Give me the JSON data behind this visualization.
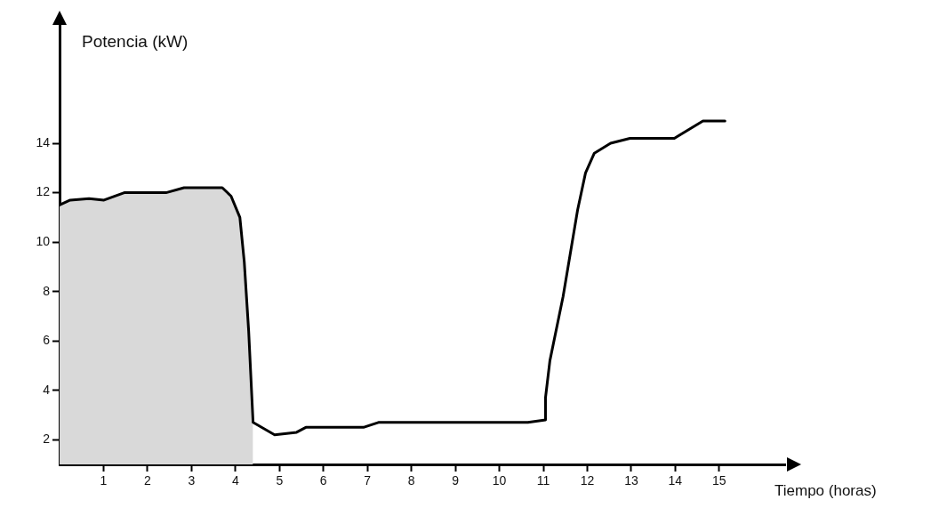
{
  "chart_data": {
    "type": "line",
    "xlabel": "Tiempo (horas)",
    "ylabel": "Potencia (kW)",
    "xlim": [
      0,
      16.5
    ],
    "ylim": [
      1,
      18
    ],
    "xticks": [
      1,
      2,
      3,
      4,
      5,
      6,
      7,
      8,
      9,
      10,
      11,
      12,
      13,
      14,
      15
    ],
    "yticks": [
      2,
      4,
      6,
      8,
      10,
      12,
      14
    ],
    "series": [
      {
        "type": "area",
        "color": "#d9d9d9",
        "x": [
          0,
          0.24,
          0.67,
          1.01,
          1.47,
          2.42,
          2.83,
          3.7,
          3.9,
          4.1,
          4.2,
          4.3,
          4.4
        ],
        "values": [
          11.5,
          11.7,
          11.76,
          11.7,
          12.0,
          12.0,
          12.2,
          12.2,
          11.86,
          11.0,
          9.2,
          6.4,
          2.7
        ]
      },
      {
        "color": "#000000",
        "x": [
          0,
          0.24,
          0.67,
          1.01,
          1.47,
          2.42,
          2.83,
          3.7,
          3.9,
          4.1,
          4.2,
          4.3,
          4.4,
          4.89,
          5.39,
          5.6,
          6.91,
          7.25,
          10.65,
          11.05,
          11.05,
          11.15,
          11.45,
          11.78,
          11.96,
          12.16,
          12.53,
          12.97,
          13.98,
          14.63,
          15.13
        ],
        "values": [
          11.5,
          11.7,
          11.76,
          11.7,
          12.0,
          12.0,
          12.2,
          12.2,
          11.86,
          11.0,
          9.2,
          6.4,
          2.7,
          2.2,
          2.3,
          2.5,
          2.5,
          2.7,
          2.7,
          2.8,
          3.7,
          5.2,
          7.8,
          11.3,
          12.8,
          13.6,
          14.0,
          14.2,
          14.2,
          14.9,
          14.9
        ]
      }
    ],
    "marker": "none"
  }
}
